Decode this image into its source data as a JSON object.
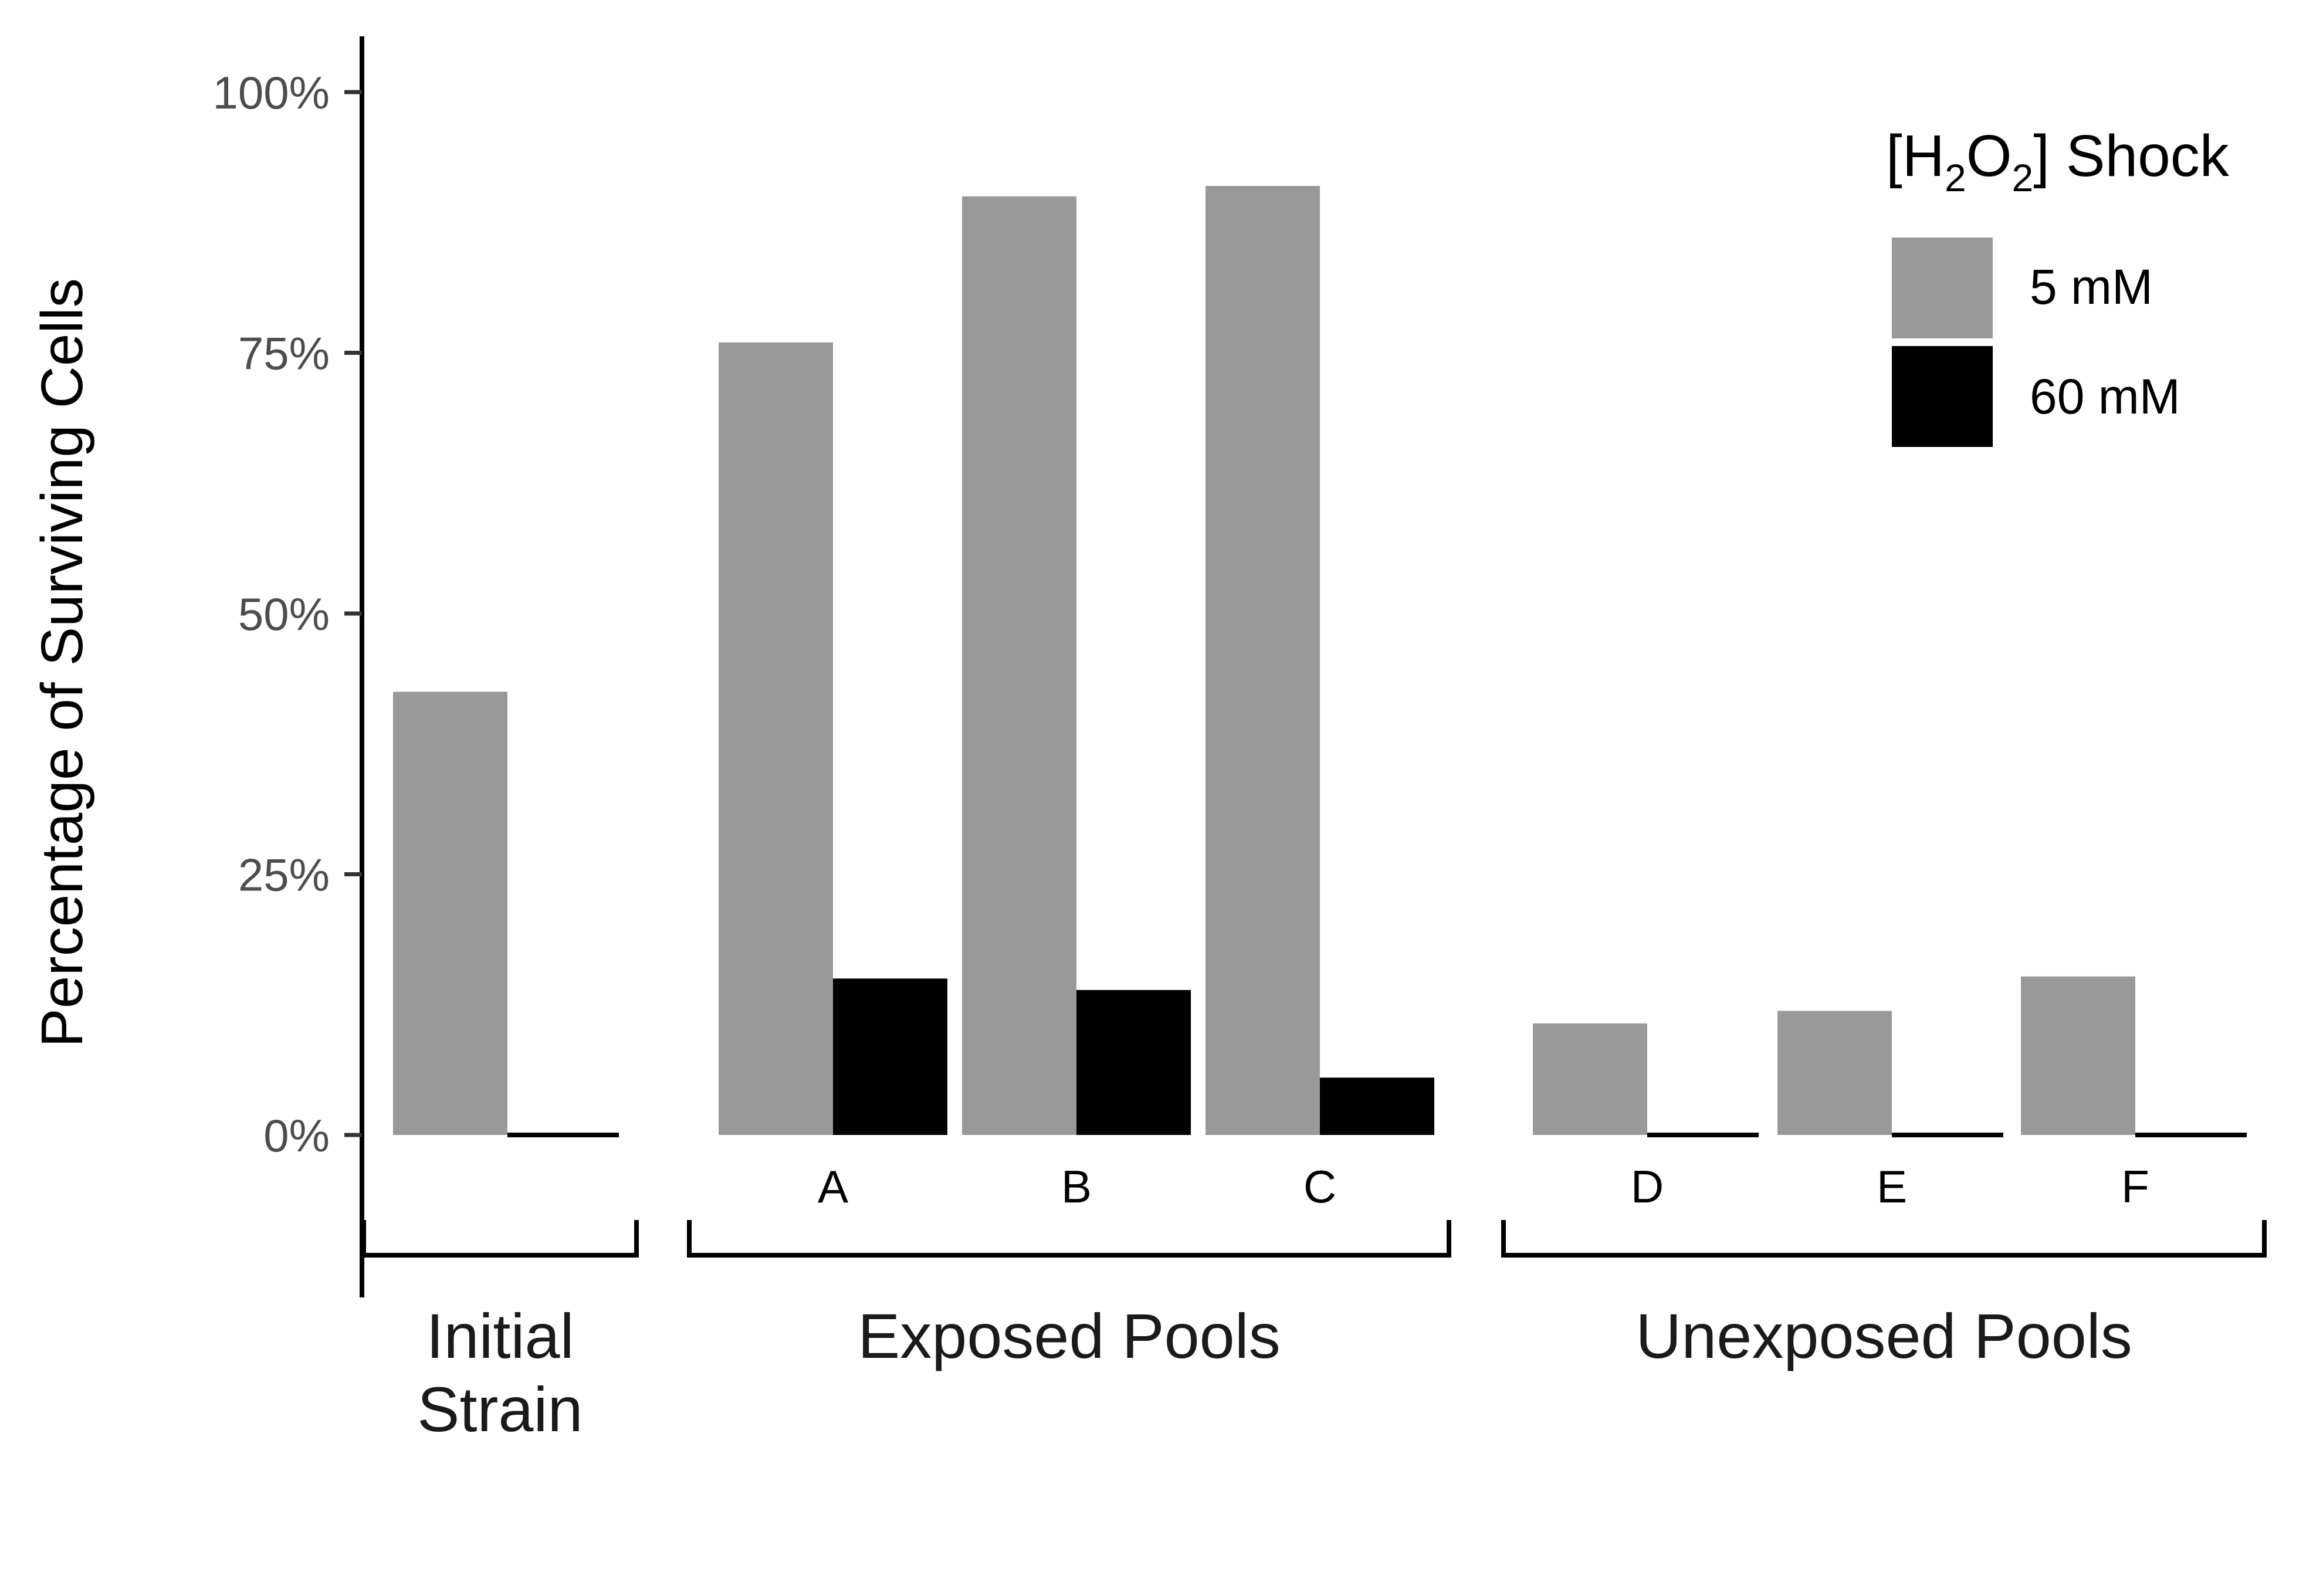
{
  "chart_data": {
    "type": "bar",
    "ylabel": "Percentage of Surviving Cells",
    "ylim": [
      0,
      100
    ],
    "yticks": [
      "0%",
      "25%",
      "50%",
      "75%",
      "100%"
    ],
    "ytick_values": [
      0,
      25,
      50,
      75,
      100
    ],
    "grid": false,
    "legend": {
      "title_prefix": "[H",
      "title_sub1": "2",
      "title_mid": "O",
      "title_sub2": "2",
      "title_suffix": "] Shock",
      "placement": "top-right"
    },
    "colors": {
      "5 mM": "#999999",
      "60 mM": "#000000"
    },
    "categories": [
      "",
      "A",
      "B",
      "C",
      "D",
      "E",
      "F"
    ],
    "groups": [
      {
        "label_lines": [
          "Initial",
          "Strain"
        ],
        "categories": [
          0
        ]
      },
      {
        "label_lines": [
          "Exposed Pools"
        ],
        "categories": [
          1,
          2,
          3
        ]
      },
      {
        "label_lines": [
          "Unexposed Pools"
        ],
        "categories": [
          4,
          5,
          6
        ]
      }
    ],
    "series": [
      {
        "name": "5 mM",
        "values": [
          42.5,
          76,
          90,
          91,
          10.7,
          11.9,
          15.2
        ]
      },
      {
        "name": "60 mM",
        "values": [
          0,
          15,
          13.9,
          5.5,
          0,
          0,
          0
        ]
      }
    ]
  }
}
